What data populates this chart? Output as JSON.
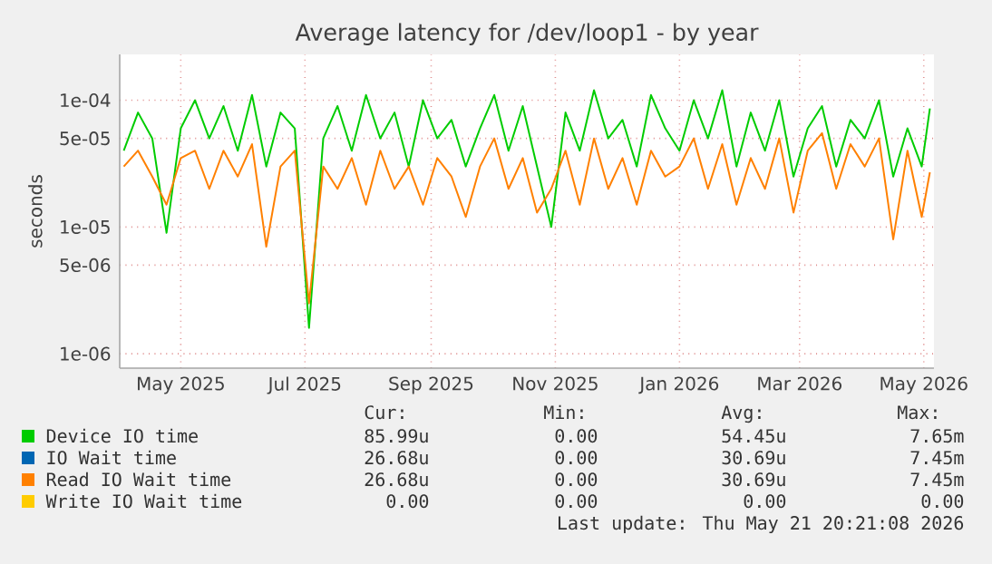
{
  "chart_data": {
    "type": "line",
    "title": "Average latency for /dev/loop1 - by year",
    "ylabel": "seconds",
    "log": "y",
    "grid": true,
    "legend": "bottom",
    "xlim": [
      "2025-04-01",
      "2026-05-06"
    ],
    "ylim": [
      7.7e-07,
      0.00023
    ],
    "xticks": [
      {
        "value": "2025-05-01",
        "label": "May 2025"
      },
      {
        "value": "2025-07-01",
        "label": "Jul 2025"
      },
      {
        "value": "2025-09-01",
        "label": "Sep 2025"
      },
      {
        "value": "2025-11-01",
        "label": "Nov 2025"
      },
      {
        "value": "2026-01-01",
        "label": "Jan 2026"
      },
      {
        "value": "2026-03-01",
        "label": "Mar 2026"
      },
      {
        "value": "2026-05-01",
        "label": "May 2026"
      }
    ],
    "yticks": [
      {
        "value": 1e-06,
        "label": "1e-06"
      },
      {
        "value": 5e-06,
        "label": "5e-06"
      },
      {
        "value": 1e-05,
        "label": "1e-05"
      },
      {
        "value": 5e-05,
        "label": "5e-05"
      },
      {
        "value": 0.0001,
        "label": "1e-04"
      }
    ],
    "x": [
      "2025-04-03",
      "2025-04-10",
      "2025-04-17",
      "2025-04-24",
      "2025-05-01",
      "2025-05-08",
      "2025-05-15",
      "2025-05-22",
      "2025-05-29",
      "2025-06-05",
      "2025-06-12",
      "2025-06-19",
      "2025-06-26",
      "2025-07-03",
      "2025-07-10",
      "2025-07-17",
      "2025-07-24",
      "2025-07-31",
      "2025-08-07",
      "2025-08-14",
      "2025-08-21",
      "2025-08-28",
      "2025-09-04",
      "2025-09-11",
      "2025-09-18",
      "2025-09-25",
      "2025-10-02",
      "2025-10-09",
      "2025-10-16",
      "2025-10-23",
      "2025-10-30",
      "2025-11-06",
      "2025-11-13",
      "2025-11-20",
      "2025-11-27",
      "2025-12-04",
      "2025-12-11",
      "2025-12-18",
      "2025-12-25",
      "2026-01-01",
      "2026-01-08",
      "2026-01-15",
      "2026-01-22",
      "2026-01-29",
      "2026-02-05",
      "2026-02-12",
      "2026-02-19",
      "2026-02-26",
      "2026-03-05",
      "2026-03-12",
      "2026-03-19",
      "2026-03-26",
      "2026-04-02",
      "2026-04-09",
      "2026-04-16",
      "2026-04-23",
      "2026-04-30",
      "2026-05-04"
    ],
    "series": [
      {
        "name": "Device IO time",
        "color": "#00cc00",
        "values": [
          4e-05,
          8e-05,
          5e-05,
          9e-06,
          6e-05,
          0.0001,
          5e-05,
          9e-05,
          4e-05,
          0.00011,
          3e-05,
          8e-05,
          6e-05,
          1.6e-06,
          5e-05,
          9e-05,
          4e-05,
          0.00011,
          5e-05,
          8e-05,
          3e-05,
          0.0001,
          5e-05,
          7e-05,
          3e-05,
          6e-05,
          0.00011,
          4e-05,
          9e-05,
          3e-05,
          1e-05,
          8e-05,
          4e-05,
          0.00012,
          5e-05,
          7e-05,
          3e-05,
          0.00011,
          6e-05,
          4e-05,
          0.0001,
          5e-05,
          0.00012,
          3e-05,
          8e-05,
          4e-05,
          0.0001,
          2.5e-05,
          6e-05,
          9e-05,
          3e-05,
          7e-05,
          5e-05,
          0.0001,
          2.5e-05,
          6e-05,
          3e-05,
          8.6e-05
        ]
      },
      {
        "name": "IO Wait time",
        "color": "#0066b3",
        "values": [
          null,
          null,
          null,
          null,
          null,
          null,
          null,
          null,
          null,
          null,
          null,
          null,
          null,
          null,
          null,
          null,
          null,
          null,
          null,
          null,
          null,
          null,
          null,
          null,
          null,
          null,
          null,
          null,
          null,
          null,
          null,
          null,
          null,
          null,
          null,
          null,
          null,
          null,
          null,
          null,
          null,
          null,
          null,
          null,
          null,
          null,
          null,
          null,
          null,
          null,
          null,
          null,
          null,
          null,
          null,
          null,
          null,
          null
        ]
      },
      {
        "name": "Read IO Wait time",
        "color": "#ff8000",
        "values": [
          3e-05,
          4e-05,
          2.5e-05,
          1.5e-05,
          3.5e-05,
          4e-05,
          2e-05,
          4e-05,
          2.5e-05,
          4.5e-05,
          7e-06,
          3e-05,
          4e-05,
          2.5e-06,
          3e-05,
          2e-05,
          3.5e-05,
          1.5e-05,
          4e-05,
          2e-05,
          3e-05,
          1.5e-05,
          3.5e-05,
          2.5e-05,
          1.2e-05,
          3e-05,
          5e-05,
          2e-05,
          3.5e-05,
          1.3e-05,
          2e-05,
          4e-05,
          1.5e-05,
          5e-05,
          2e-05,
          3.5e-05,
          1.5e-05,
          4e-05,
          2.5e-05,
          3e-05,
          5e-05,
          2e-05,
          4.5e-05,
          1.5e-05,
          3.5e-05,
          2e-05,
          5e-05,
          1.3e-05,
          4e-05,
          5.5e-05,
          2e-05,
          4.5e-05,
          3e-05,
          5e-05,
          8e-06,
          4e-05,
          1.2e-05,
          2.7e-05
        ]
      },
      {
        "name": "Write IO Wait time",
        "color": "#ffcc00",
        "values": [
          null,
          null,
          null,
          null,
          null,
          null,
          null,
          null,
          null,
          null,
          null,
          null,
          null,
          null,
          null,
          null,
          null,
          null,
          null,
          null,
          null,
          null,
          null,
          null,
          null,
          null,
          null,
          null,
          null,
          null,
          null,
          null,
          null,
          null,
          null,
          null,
          null,
          null,
          null,
          null,
          null,
          null,
          null,
          null,
          null,
          null,
          null,
          null,
          null,
          null,
          null,
          null,
          null,
          null,
          null,
          null,
          null,
          null
        ]
      }
    ],
    "annotations": [
      "Cur:",
      "Min:",
      "Avg:",
      "Max:",
      "85.99u",
      "0.00",
      "54.45u",
      "7.65m",
      "26.68u",
      "0.00",
      "30.69u",
      "7.45m",
      "26.68u",
      "0.00",
      "30.69u",
      "7.45m",
      "0.00",
      "0.00",
      "0.00",
      "0.00",
      "Last update: Thu May 21 20:21:08 2026"
    ]
  }
}
